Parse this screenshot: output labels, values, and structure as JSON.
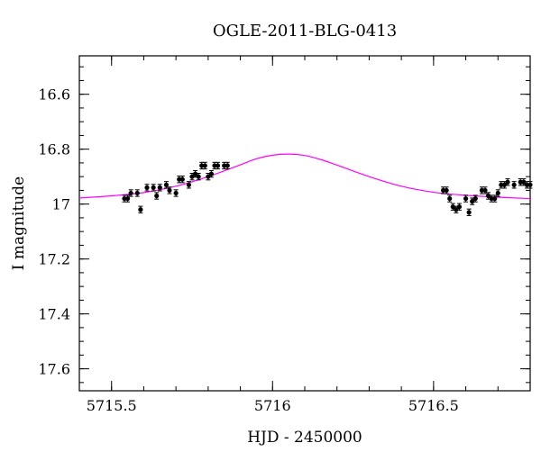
{
  "chart_data": {
    "type": "scatter",
    "title": "OGLE-2011-BLG-0413",
    "xlabel": "HJD - 2450000",
    "ylabel": "I magnitude",
    "xlim": [
      5715.4,
      5716.8
    ],
    "ylim": [
      17.68,
      16.46
    ],
    "y_inverted": true,
    "x_ticks": [
      5715.5,
      5716,
      5716.5
    ],
    "x_tick_labels": [
      "5715.5",
      "5716",
      "5716.5"
    ],
    "y_ticks": [
      16.6,
      16.8,
      17,
      17.2,
      17.4,
      17.6
    ],
    "y_tick_labels": [
      "16.6",
      "16.8",
      "17",
      "17.2",
      "17.4",
      "17.6"
    ],
    "x_minor_step": 0.1,
    "y_minor_step": 0.05,
    "grid": false,
    "colors": {
      "points": "#000000",
      "model": "#ff00ff"
    },
    "series": [
      {
        "kind": "points",
        "error": 0.012,
        "x": [
          5715.54,
          5715.55,
          5715.56,
          5715.58,
          5715.59,
          5715.61,
          5715.63,
          5715.64,
          5715.65,
          5715.67,
          5715.68,
          5715.7,
          5715.71,
          5715.72,
          5715.74,
          5715.75,
          5715.76,
          5715.77,
          5715.78,
          5715.79,
          5715.8,
          5715.81,
          5715.82,
          5715.83,
          5715.85,
          5715.86,
          5716.53,
          5716.54,
          5716.55,
          5716.56,
          5716.57,
          5716.58,
          5716.6,
          5716.61,
          5716.62,
          5716.63,
          5716.65,
          5716.66,
          5716.67,
          5716.68,
          5716.69,
          5716.7,
          5716.71,
          5716.72,
          5716.73,
          5716.75,
          5716.77,
          5716.78,
          5716.79,
          5716.8
        ],
        "y": [
          16.98,
          16.98,
          16.96,
          16.96,
          17.02,
          16.94,
          16.94,
          16.97,
          16.94,
          16.93,
          16.95,
          16.96,
          16.91,
          16.91,
          16.93,
          16.9,
          16.89,
          16.9,
          16.86,
          16.86,
          16.9,
          16.89,
          16.86,
          16.86,
          16.86,
          16.86,
          16.95,
          16.95,
          16.98,
          17.01,
          17.02,
          17.01,
          16.98,
          17.03,
          16.99,
          16.98,
          16.95,
          16.95,
          16.97,
          16.98,
          16.98,
          16.96,
          16.93,
          16.93,
          16.92,
          16.93,
          16.92,
          16.92,
          16.93,
          16.93
        ]
      },
      {
        "kind": "model",
        "x": [
          5715.4,
          5715.5,
          5715.6,
          5715.7,
          5715.8,
          5715.9,
          5715.95,
          5716.0,
          5716.05,
          5716.1,
          5716.15,
          5716.2,
          5716.3,
          5716.4,
          5716.5,
          5716.6,
          5716.7,
          5716.8
        ],
        "y": [
          16.978,
          16.97,
          16.958,
          16.935,
          16.9,
          16.857,
          16.835,
          16.822,
          16.818,
          16.823,
          16.838,
          16.858,
          16.9,
          16.935,
          16.957,
          16.968,
          16.975,
          16.98
        ]
      }
    ]
  }
}
